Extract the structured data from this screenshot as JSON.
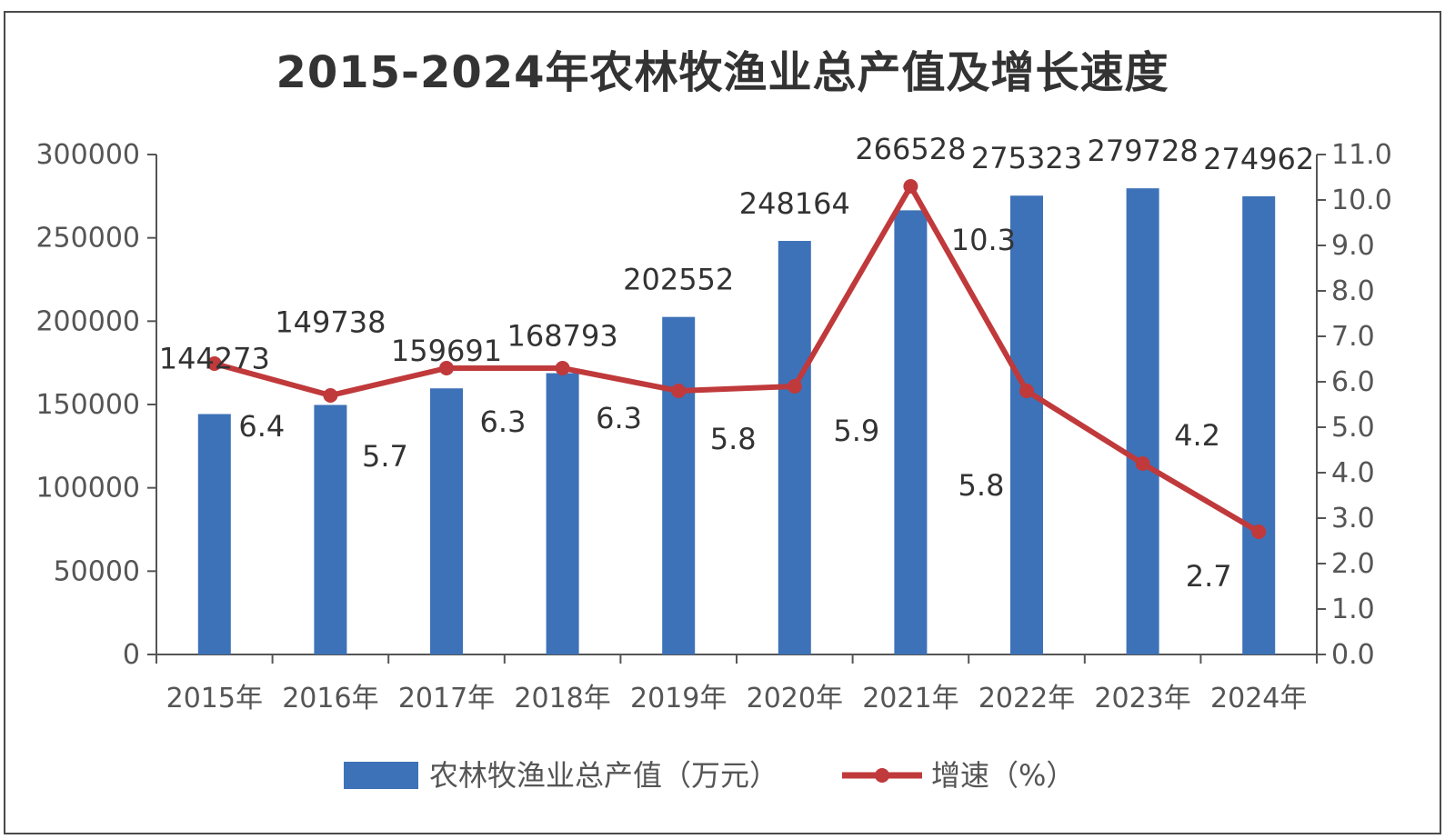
{
  "chart_data": {
    "type": "bar",
    "title": "2015-2024年农林牧渔业总产值及增长速度",
    "categories": [
      "2015年",
      "2016年",
      "2017年",
      "2018年",
      "2019年",
      "2020年",
      "2021年",
      "2022年",
      "2023年",
      "2024年"
    ],
    "series": [
      {
        "name": "农林牧渔业总产值（万元）",
        "type": "bar",
        "axis": "left",
        "values": [
          144273,
          149738,
          159691,
          168793,
          202552,
          248164,
          266528,
          275323,
          279728,
          274962
        ]
      },
      {
        "name": "增速（%）",
        "type": "line",
        "axis": "right",
        "values": [
          6.4,
          5.7,
          6.3,
          6.3,
          5.8,
          5.9,
          10.3,
          5.8,
          4.2,
          2.7
        ]
      }
    ],
    "y_left": {
      "min": 0,
      "max": 300000,
      "ticks": [
        "0",
        "50000",
        "100000",
        "150000",
        "200000",
        "250000",
        "300000"
      ]
    },
    "y_right": {
      "min": 0,
      "max": 11,
      "ticks": [
        "0.0",
        "1.0",
        "2.0",
        "3.0",
        "4.0",
        "5.0",
        "6.0",
        "7.0",
        "8.0",
        "9.0",
        "10.0",
        "11.0"
      ]
    },
    "legend_position": "bottom",
    "grid": false
  },
  "colors": {
    "bar": "#3d72b8",
    "line": "#c0393b",
    "axis": "#555555",
    "text": "#333333"
  }
}
